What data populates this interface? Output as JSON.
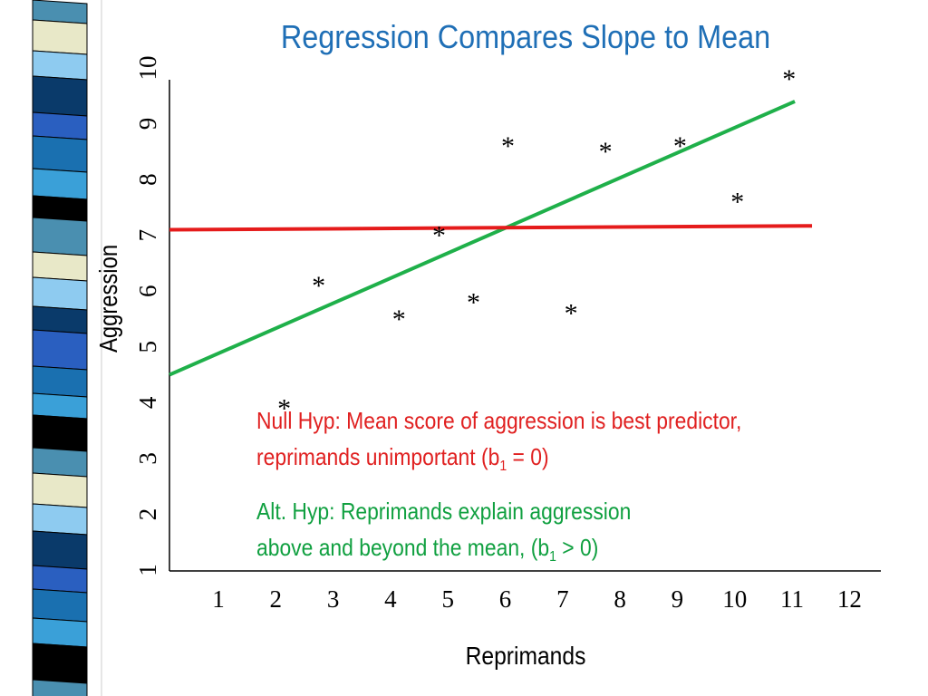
{
  "title": "Regression Compares Slope to Mean",
  "colors": {
    "title": "#1f6fb6",
    "regression_line": "#1fb04a",
    "mean_line": "#e51b1b",
    "null_text": "#e02020",
    "alt_text": "#10a040"
  },
  "null_hyp": {
    "line1": "Null Hyp:  Mean score of aggression is best predictor,",
    "line2_pre": "reprimands unimportant (b",
    "line2_sub": "1",
    "line2_post": " = 0)"
  },
  "alt_hyp": {
    "line1": "Alt. Hyp:  Reprimands explain aggression",
    "line2_pre": "above and beyond the mean, (b",
    "line2_sub": "1",
    "line2_post": " > 0)"
  },
  "chart_data": {
    "type": "scatter",
    "title": "Regression Compares Slope to Mean",
    "xlabel": "Reprimands",
    "ylabel": "Aggression",
    "x_ticks": [
      "1",
      "2",
      "3",
      "4",
      "5",
      "6",
      "7",
      "8",
      "9",
      "10",
      "11",
      "12"
    ],
    "y_ticks": [
      "1",
      "2",
      "3",
      "4",
      "5",
      "6",
      "7",
      "8",
      "9",
      "10"
    ],
    "xlim": [
      0.1,
      12.5
    ],
    "ylim": [
      1,
      10
    ],
    "marker": "*",
    "points": [
      {
        "x": 2.1,
        "y": 4.0
      },
      {
        "x": 2.7,
        "y": 6.2
      },
      {
        "x": 4.1,
        "y": 5.6
      },
      {
        "x": 4.8,
        "y": 7.1
      },
      {
        "x": 5.4,
        "y": 5.9
      },
      {
        "x": 6.0,
        "y": 8.7
      },
      {
        "x": 7.1,
        "y": 5.7
      },
      {
        "x": 7.7,
        "y": 8.6
      },
      {
        "x": 9.0,
        "y": 8.7
      },
      {
        "x": 10.0,
        "y": 7.7
      },
      {
        "x": 10.9,
        "y": 9.9
      }
    ],
    "lines": [
      {
        "role": "regression",
        "color": "#1fb04a",
        "x": [
          0.1,
          11.0
        ],
        "y": [
          4.5,
          9.4
        ]
      },
      {
        "role": "mean",
        "color": "#e51b1b",
        "x": [
          0.1,
          11.3
        ],
        "y": [
          7.1,
          7.17
        ]
      }
    ],
    "grid": false
  }
}
